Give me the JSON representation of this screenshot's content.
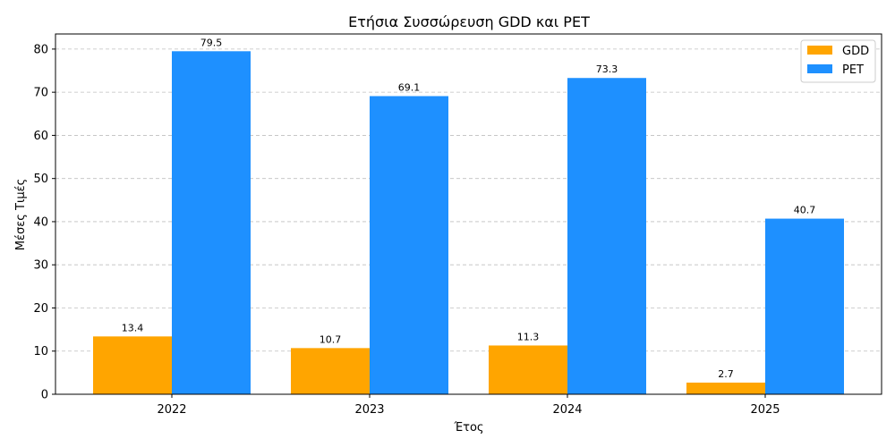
{
  "chart_data": {
    "type": "bar",
    "title": "Ετήσια Συσσώρευση GDD και PET",
    "xlabel": "Έτος",
    "ylabel": "Μέσες Τιμές",
    "categories": [
      "2022",
      "2023",
      "2024",
      "2025"
    ],
    "series": [
      {
        "name": "GDD",
        "color": "#FFA500",
        "values": [
          13.4,
          10.7,
          11.3,
          2.7
        ],
        "labels": [
          "13.4",
          "10.7",
          "11.3",
          "2.7"
        ]
      },
      {
        "name": "PET",
        "color": "#1E90FF",
        "values": [
          79.5,
          69.1,
          73.3,
          40.7
        ],
        "labels": [
          "79.5",
          "69.1",
          "73.3",
          "40.7"
        ]
      }
    ],
    "ylim": [
      0,
      83.5
    ],
    "yticks": [
      "0",
      "10",
      "20",
      "30",
      "40",
      "50",
      "60",
      "70",
      "80"
    ],
    "grid": "y-dashed",
    "legend": "top-right"
  }
}
